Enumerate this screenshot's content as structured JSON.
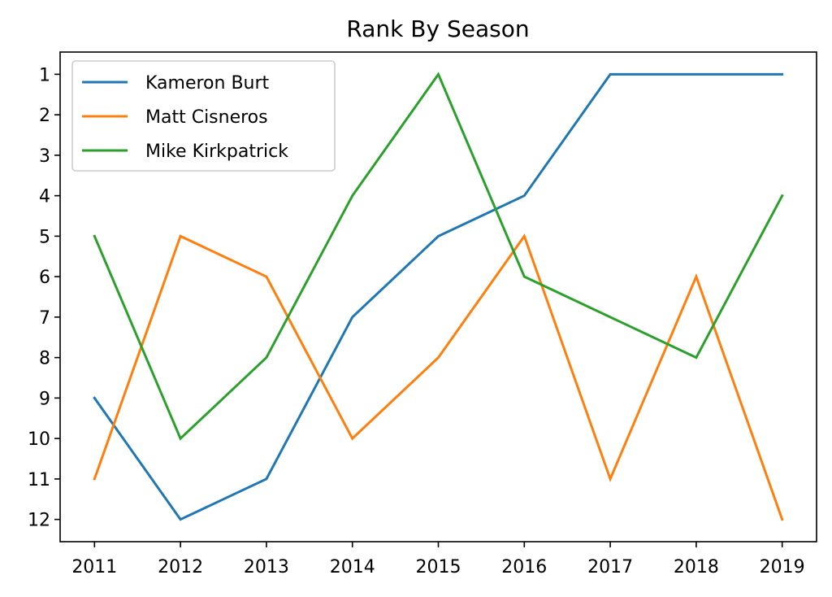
{
  "chart_data": {
    "type": "line",
    "title": "Rank By Season",
    "xlabel": "",
    "ylabel": "",
    "x": [
      2011,
      2012,
      2013,
      2014,
      2015,
      2016,
      2017,
      2018,
      2019
    ],
    "y_ticks": [
      1,
      2,
      3,
      4,
      5,
      6,
      7,
      8,
      9,
      10,
      11,
      12
    ],
    "ylim": [
      12.55,
      0.45
    ],
    "y_inverted": true,
    "grid": false,
    "legend_position": "upper-left",
    "series": [
      {
        "name": "Kameron Burt",
        "color": "#1f77b4",
        "values": [
          9,
          12,
          11,
          7,
          5,
          4,
          1,
          1,
          1
        ]
      },
      {
        "name": "Matt Cisneros",
        "color": "#ff7f0e",
        "values": [
          11,
          5,
          6,
          10,
          8,
          5,
          11,
          6,
          12
        ]
      },
      {
        "name": "Mike Kirkpatrick",
        "color": "#2ca02c",
        "values": [
          5,
          10,
          8,
          4,
          1,
          6,
          7,
          8,
          4
        ]
      }
    ]
  }
}
